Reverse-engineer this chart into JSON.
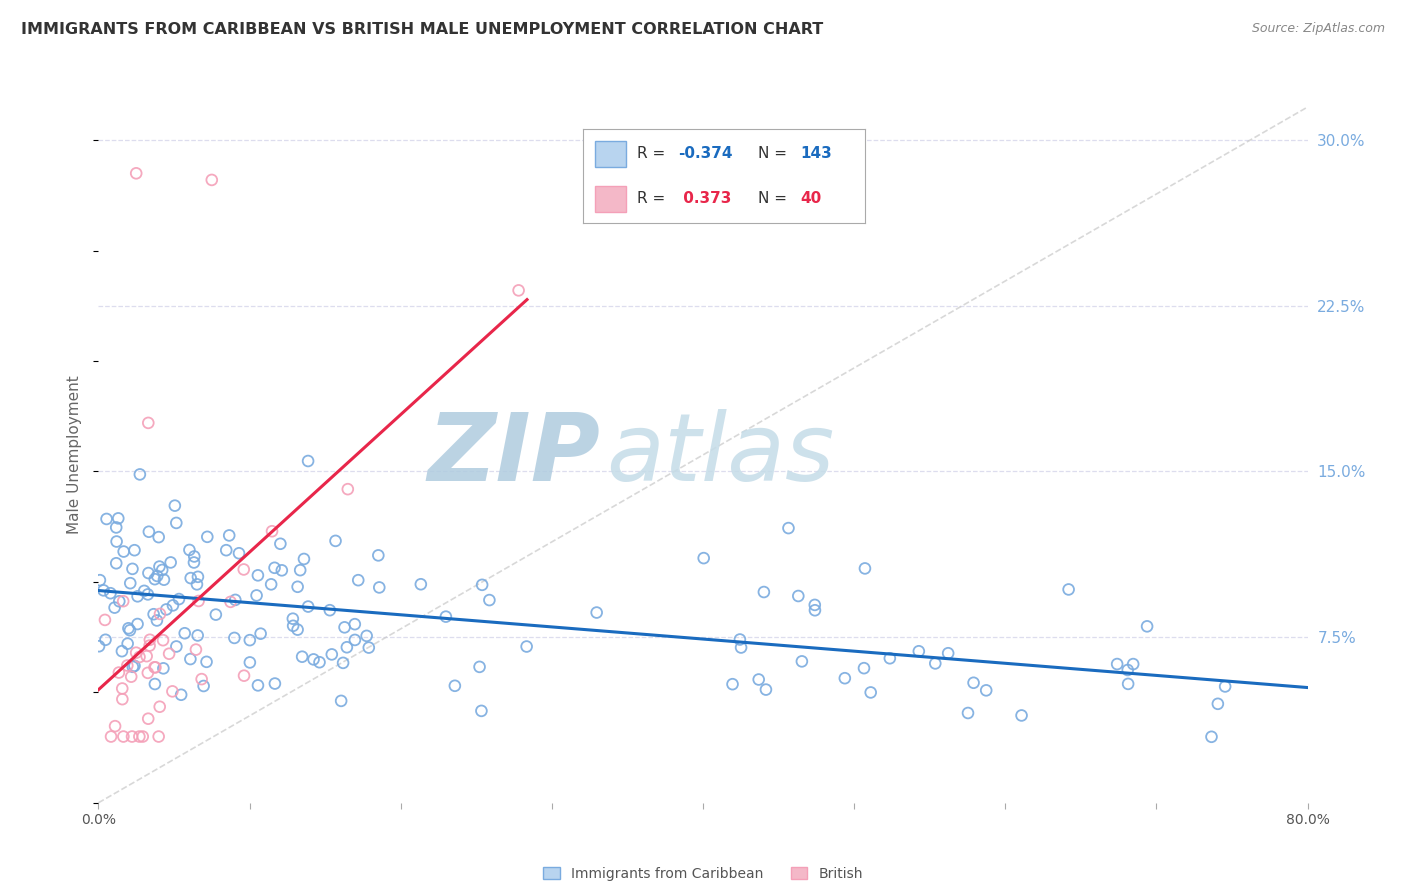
{
  "title": "IMMIGRANTS FROM CARIBBEAN VS BRITISH MALE UNEMPLOYMENT CORRELATION CHART",
  "source": "Source: ZipAtlas.com",
  "ylabel": "Male Unemployment",
  "y_ticks_right": [
    0.075,
    0.15,
    0.225,
    0.3
  ],
  "y_tick_labels_right": [
    "7.5%",
    "15.0%",
    "22.5%",
    "30.0%"
  ],
  "xlim": [
    0.0,
    0.8
  ],
  "ylim": [
    0.0,
    0.315
  ],
  "watermark_zip": "ZIP",
  "watermark_atlas": "atlas",
  "watermark_color": "#c8ddf0",
  "background_color": "#ffffff",
  "grid_color": "#ddddee",
  "blue_color": "#7aabdf",
  "pink_color": "#f4a0b8",
  "blue_trend_color": "#1a6bbf",
  "pink_trend_color": "#e8264a",
  "dashed_line_color": "#c8c8c8",
  "title_color": "#333333",
  "source_color": "#888888",
  "legend_R_color_blue": "#1a6bbf",
  "legend_R_color_pink": "#e8264a",
  "legend_box_blue_face": "#b8d4ef",
  "legend_box_blue_edge": "#7aabdf",
  "legend_box_pink_face": "#f4b8c8",
  "legend_box_pink_edge": "#f4a0b8"
}
